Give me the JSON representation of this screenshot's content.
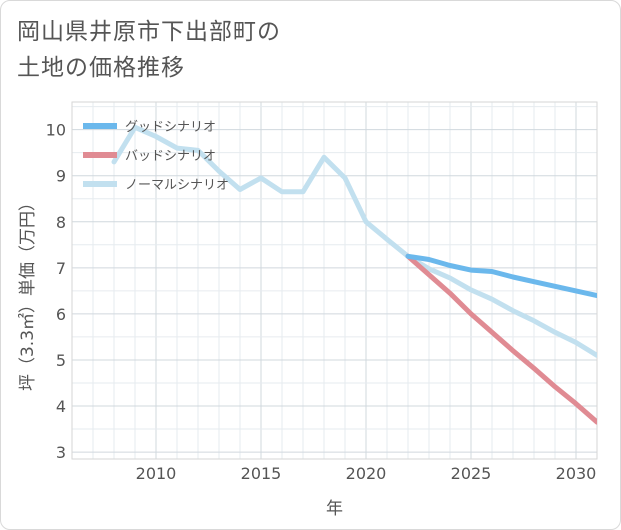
{
  "title": "岡山県井原市下出部町の土地の価格推移",
  "title_lines": [
    "岡山県井原市下出部町の",
    "土地の価格推移"
  ],
  "chart_data": {
    "type": "line",
    "title": "岡山県井原市下出部町の土地の価格推移",
    "xlabel": "年",
    "ylabel": "坪（3.3㎡）単価（万円）",
    "xlim": [
      2006,
      2031
    ],
    "ylim": [
      2.85,
      10.6
    ],
    "x_ticks": [
      2010,
      2015,
      2020,
      2025,
      2030
    ],
    "y_ticks": [
      3,
      4,
      5,
      6,
      7,
      8,
      9,
      10
    ],
    "grid": true,
    "legend_position": "top-left",
    "series": [
      {
        "name": "ノーマルシナリオ",
        "color": "#c2e0ef",
        "width": 5,
        "x": [
          2008,
          2009,
          2010,
          2011,
          2012,
          2013,
          2014,
          2015,
          2016,
          2017,
          2018,
          2019,
          2020,
          2021,
          2022,
          2023,
          2024,
          2025,
          2026,
          2027,
          2028,
          2029,
          2030,
          2031
        ],
        "y": [
          9.3,
          10.05,
          9.85,
          9.6,
          9.55,
          9.1,
          8.7,
          8.95,
          8.65,
          8.65,
          9.4,
          8.95,
          8.0,
          7.62,
          7.25,
          6.98,
          6.78,
          6.52,
          6.32,
          6.07,
          5.85,
          5.6,
          5.38,
          5.1
        ]
      },
      {
        "name": "バッドシナリオ",
        "color": "#e08b93",
        "width": 5,
        "x": [
          2022,
          2023,
          2024,
          2025,
          2026,
          2027,
          2028,
          2029,
          2030,
          2031
        ],
        "y": [
          7.25,
          6.85,
          6.45,
          6.0,
          5.6,
          5.2,
          4.82,
          4.42,
          4.05,
          3.65
        ]
      },
      {
        "name": "グッドシナリオ",
        "color": "#6bb8ec",
        "width": 5,
        "x": [
          2022,
          2023,
          2024,
          2025,
          2026,
          2027,
          2028,
          2029,
          2030,
          2031
        ],
        "y": [
          7.25,
          7.18,
          7.05,
          6.95,
          6.92,
          6.8,
          6.7,
          6.6,
          6.5,
          6.4
        ]
      }
    ],
    "legend": [
      {
        "name": "グッドシナリオ",
        "color": "#6bb8ec"
      },
      {
        "name": "バッドシナリオ",
        "color": "#e08b93"
      },
      {
        "name": "ノーマルシナリオ",
        "color": "#c2e0ef"
      }
    ]
  }
}
